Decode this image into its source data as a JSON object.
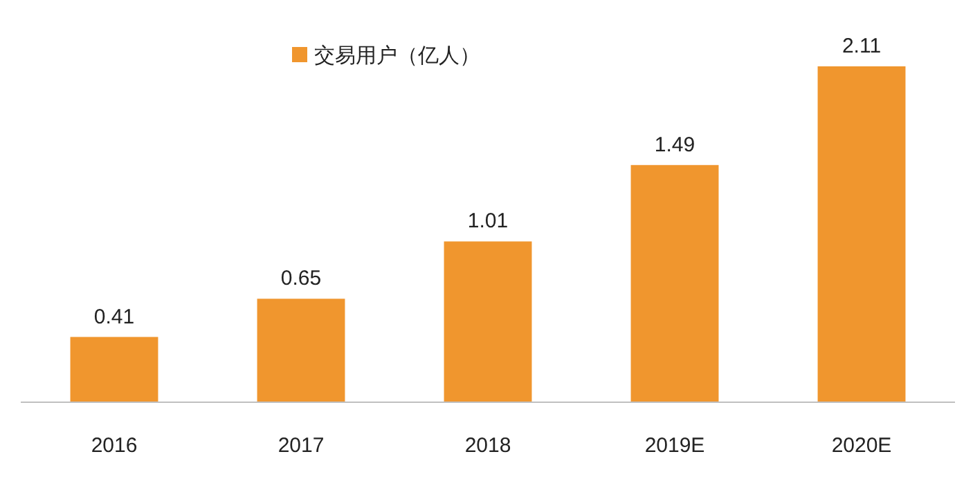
{
  "chart_data": {
    "type": "bar",
    "categories": [
      "2016",
      "2017",
      "2018",
      "2019E",
      "2020E"
    ],
    "series": [
      {
        "name": "交易用户（亿人）",
        "color": "#f0962e",
        "values": [
          0.41,
          0.65,
          1.01,
          1.49,
          2.11
        ]
      }
    ],
    "data_labels": true,
    "legend": "top"
  }
}
